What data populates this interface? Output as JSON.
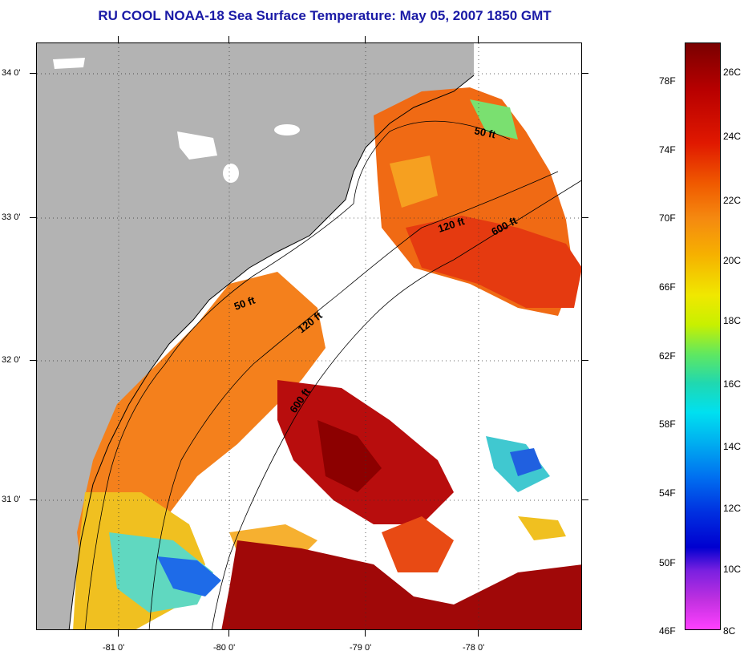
{
  "title": "RU COOL  NOAA-18  Sea Surface Temperature:  May 05, 2007 1850 GMT",
  "lat_labels": [
    "34 0'",
    "33 0'",
    "32 0'",
    "31 0'"
  ],
  "lon_labels": [
    "-81 0'",
    "-80 0'",
    "-79 0'",
    "-78 0'"
  ],
  "contours": [
    "50 ft",
    "120 ft",
    "600 ft",
    "50 ft",
    "120 ft",
    "600 ft"
  ],
  "colorbar": {
    "fahrenheit": [
      "78F",
      "74F",
      "70F",
      "66F",
      "62F",
      "58F",
      "54F",
      "50F",
      "46F"
    ],
    "celsius": [
      "26C",
      "24C",
      "22C",
      "20C",
      "18C",
      "16C",
      "14C",
      "12C",
      "10C",
      "8C"
    ]
  },
  "colors": {
    "land": "#b3b3b3",
    "title": "#1a1aa6",
    "no_data": "#ffffff"
  }
}
